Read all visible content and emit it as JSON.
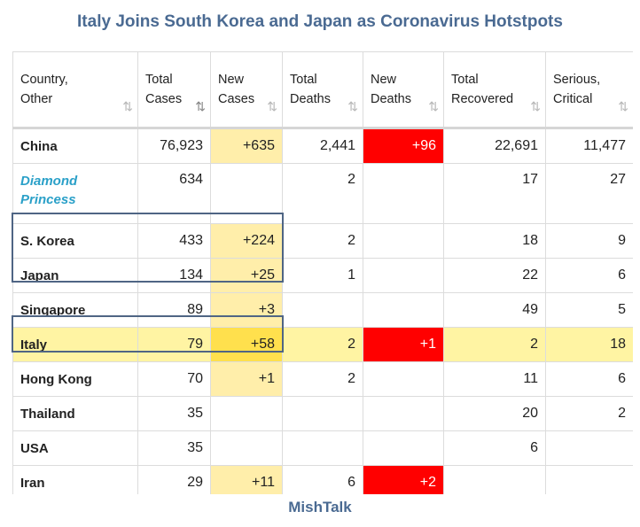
{
  "title": "Italy Joins South Korea and Japan as Coronavirus Hotstpots",
  "footer": "MishTalk",
  "columns": [
    {
      "line1": "Country,",
      "line2": "Other",
      "sort": "⇅"
    },
    {
      "line1": "Total",
      "line2": "Cases",
      "sort": "⇅"
    },
    {
      "line1": "New",
      "line2": "Cases",
      "sort": "⇅"
    },
    {
      "line1": "Total",
      "line2": "Deaths",
      "sort": "⇅"
    },
    {
      "line1": "New",
      "line2": "Deaths",
      "sort": "⇅"
    },
    {
      "line1": "Total",
      "line2": "Recovered",
      "sort": "⇅"
    },
    {
      "line1": "Serious,",
      "line2": "Critical",
      "sort": "⇅"
    }
  ],
  "rows": [
    {
      "country": "China",
      "total_cases": "76,923",
      "new_cases": "+635",
      "total_deaths": "2,441",
      "new_deaths": "+96",
      "total_recovered": "22,691",
      "serious_critical": "11,477"
    },
    {
      "country_line1": "Diamond",
      "country_line2": "Princess",
      "total_cases": "634",
      "new_cases": "",
      "total_deaths": "2",
      "new_deaths": "",
      "total_recovered": "17",
      "serious_critical": "27"
    },
    {
      "country": "S. Korea",
      "total_cases": "433",
      "new_cases": "+224",
      "total_deaths": "2",
      "new_deaths": "",
      "total_recovered": "18",
      "serious_critical": "9"
    },
    {
      "country": "Japan",
      "total_cases": "134",
      "new_cases": "+25",
      "total_deaths": "1",
      "new_deaths": "",
      "total_recovered": "22",
      "serious_critical": "6"
    },
    {
      "country": "Singapore",
      "total_cases": "89",
      "new_cases": "+3",
      "total_deaths": "",
      "new_deaths": "",
      "total_recovered": "49",
      "serious_critical": "5"
    },
    {
      "country": "Italy",
      "total_cases": "79",
      "new_cases": "+58",
      "total_deaths": "2",
      "new_deaths": "+1",
      "total_recovered": "2",
      "serious_critical": "18"
    },
    {
      "country": "Hong Kong",
      "total_cases": "70",
      "new_cases": "+1",
      "total_deaths": "2",
      "new_deaths": "",
      "total_recovered": "11",
      "serious_critical": "6"
    },
    {
      "country": "Thailand",
      "total_cases": "35",
      "new_cases": "",
      "total_deaths": "",
      "new_deaths": "",
      "total_recovered": "20",
      "serious_critical": "2"
    },
    {
      "country": "USA",
      "total_cases": "35",
      "new_cases": "",
      "total_deaths": "",
      "new_deaths": "",
      "total_recovered": "6",
      "serious_critical": ""
    },
    {
      "country": "Iran",
      "total_cases": "29",
      "new_cases": "+11",
      "total_deaths": "6",
      "new_deaths": "+2",
      "total_recovered": "",
      "serious_critical": ""
    }
  ],
  "colors": {
    "title": "#4a6a92",
    "new_cases_highlight": "#ffeeaa",
    "new_deaths_highlight": "#ff0000",
    "italy_row_highlight": "#fff4a3",
    "highlight_box_border": "#4f6584",
    "special_entry": "#2aa0c8"
  },
  "icons": {
    "sort": "sort-arrows-icon"
  }
}
